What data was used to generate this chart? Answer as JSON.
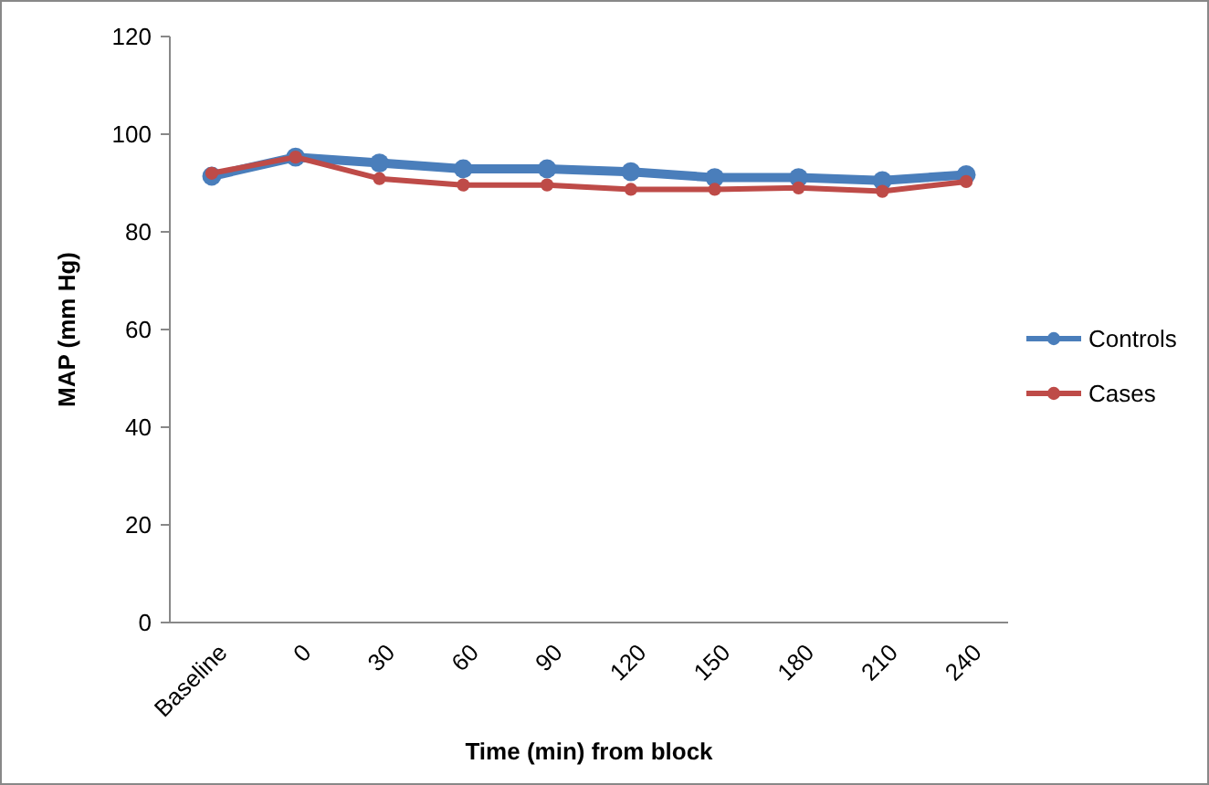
{
  "chart_data": {
    "type": "line",
    "xlabel": "Time (min) from block",
    "ylabel": "MAP (mm Hg)",
    "categories": [
      "Baseline",
      "0",
      "30",
      "60",
      "90",
      "120",
      "150",
      "180",
      "210",
      "240"
    ],
    "series": [
      {
        "name": "Controls",
        "color": "#4a7ebb",
        "values": [
          91.4,
          95.3,
          94.1,
          92.9,
          92.9,
          92.3,
          91.1,
          91.1,
          90.5,
          91.7
        ]
      },
      {
        "name": "Cases",
        "color": "#be4b48",
        "values": [
          92.0,
          95.3,
          90.9,
          89.6,
          89.6,
          88.7,
          88.7,
          89.0,
          88.3,
          90.3
        ]
      }
    ],
    "ylim": [
      0,
      120
    ],
    "yticks": [
      0,
      20,
      40,
      60,
      80,
      100,
      120
    ],
    "grid": false,
    "legend": "right",
    "marker": "circle",
    "line_style": "solid"
  }
}
